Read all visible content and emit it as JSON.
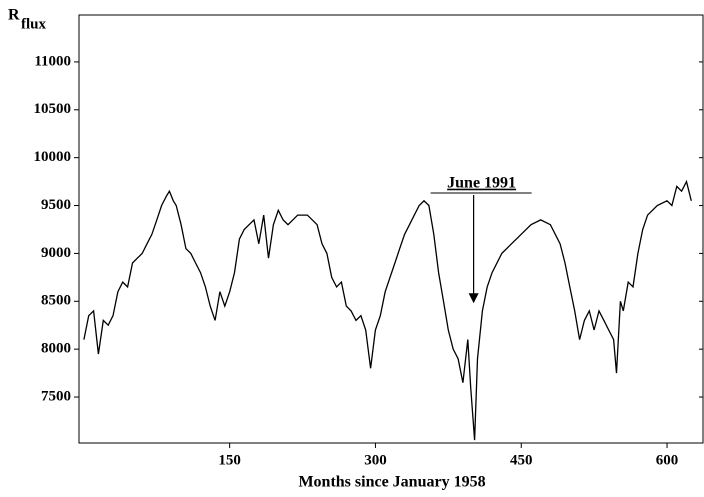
{
  "chart_data": {
    "type": "line",
    "ylabel": "R",
    "ylabel_sub": "flux",
    "xlabel": "Months since January 1958",
    "x": [
      0,
      5,
      10,
      15,
      20,
      25,
      30,
      35,
      40,
      45,
      50,
      55,
      60,
      65,
      70,
      75,
      80,
      85,
      88,
      92,
      95,
      100,
      105,
      110,
      115,
      120,
      125,
      130,
      135,
      140,
      145,
      150,
      155,
      160,
      165,
      170,
      175,
      180,
      185,
      190,
      195,
      200,
      205,
      210,
      220,
      230,
      240,
      245,
      250,
      255,
      260,
      265,
      270,
      275,
      280,
      285,
      290,
      295,
      300,
      305,
      310,
      315,
      320,
      325,
      330,
      335,
      340,
      345,
      350,
      355,
      360,
      365,
      370,
      375,
      380,
      385,
      390,
      395,
      398,
      402,
      405,
      410,
      415,
      420,
      430,
      440,
      450,
      460,
      470,
      480,
      490,
      495,
      500,
      505,
      510,
      515,
      520,
      525,
      530,
      535,
      540,
      545,
      548,
      552,
      555,
      560,
      565,
      570,
      575,
      580,
      590,
      600,
      605,
      610,
      615,
      620,
      625
    ],
    "series": [
      {
        "name": "R flux",
        "color": "#000000",
        "values": [
          8100,
          8350,
          8400,
          7950,
          8300,
          8250,
          8350,
          8600,
          8700,
          8650,
          8900,
          8950,
          9000,
          9100,
          9200,
          9350,
          9500,
          9600,
          9650,
          9550,
          9500,
          9300,
          9050,
          9000,
          8900,
          8800,
          8650,
          8450,
          8300,
          8600,
          8450,
          8600,
          8800,
          9150,
          9250,
          9300,
          9350,
          9100,
          9400,
          8950,
          9300,
          9450,
          9350,
          9300,
          9400,
          9400,
          9300,
          9100,
          9000,
          8750,
          8650,
          8700,
          8450,
          8400,
          8300,
          8350,
          8200,
          7800,
          8200,
          8350,
          8600,
          8750,
          8900,
          9050,
          9200,
          9300,
          9400,
          9500,
          9550,
          9500,
          9200,
          8800,
          8500,
          8200,
          8000,
          7900,
          7650,
          8100,
          7600,
          7050,
          7900,
          8400,
          8650,
          8800,
          9000,
          9100,
          9200,
          9300,
          9350,
          9300,
          9100,
          8900,
          8650,
          8400,
          8100,
          8300,
          8400,
          8200,
          8400,
          8300,
          8200,
          8100,
          7750,
          8500,
          8400,
          8700,
          8650,
          9000,
          9250,
          9400,
          9500,
          9550,
          9500,
          9700,
          9650,
          9750,
          9550
        ]
      }
    ],
    "xlim": [
      -5,
      637
    ],
    "ylim": [
      7020,
      11490
    ],
    "xticks": [
      150,
      300,
      450,
      600
    ],
    "yticks": [
      7500,
      8000,
      8500,
      9000,
      9500,
      10000,
      10500,
      11000
    ],
    "annotations": [
      {
        "text": "June 1991",
        "x": 401,
        "y": 8480
      }
    ]
  }
}
